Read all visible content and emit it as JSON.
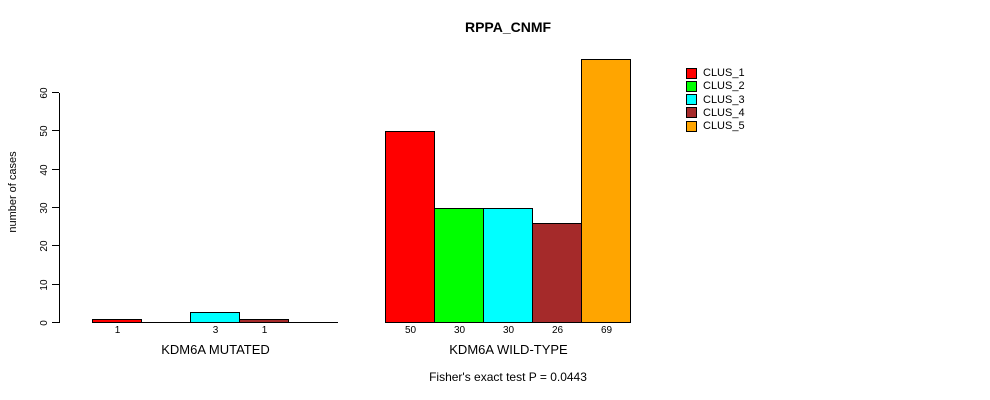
{
  "title": "RPPA_CNMF",
  "y_axis": {
    "label": "number of cases",
    "ticks": [
      0,
      10,
      20,
      30,
      40,
      50,
      60
    ]
  },
  "annotation": "Fisher's exact test P = 0.0443",
  "legend": {
    "position": "top-right",
    "items": [
      {
        "label": "CLUS_1",
        "color": "#FF0000"
      },
      {
        "label": "CLUS_2",
        "color": "#00FF00"
      },
      {
        "label": "CLUS_3",
        "color": "#00FFFF"
      },
      {
        "label": "CLUS_4",
        "color": "#A52A2A"
      },
      {
        "label": "CLUS_5",
        "color": "#FFA500"
      }
    ]
  },
  "chart_data": {
    "type": "bar",
    "title": "RPPA_CNMF",
    "ylabel": "number of cases",
    "ylim": [
      0,
      60
    ],
    "y_ticks": [
      0,
      10,
      20,
      30,
      40,
      50,
      60
    ],
    "grid": false,
    "legend_position": "top-right",
    "categories": [
      "CLUS_1",
      "CLUS_2",
      "CLUS_3",
      "CLUS_4",
      "CLUS_5"
    ],
    "colors": [
      "#FF0000",
      "#00FF00",
      "#00FFFF",
      "#A52A2A",
      "#FFA500"
    ],
    "groups": [
      {
        "label": "KDM6A MUTATED",
        "values": [
          1,
          0,
          3,
          1,
          0
        ]
      },
      {
        "label": "KDM6A WILD-TYPE",
        "values": [
          50,
          30,
          30,
          26,
          69
        ]
      }
    ],
    "bar_value_labels": "shown under each bar; zero values unlabeled",
    "annotation": "Fisher's exact test P = 0.0443"
  }
}
